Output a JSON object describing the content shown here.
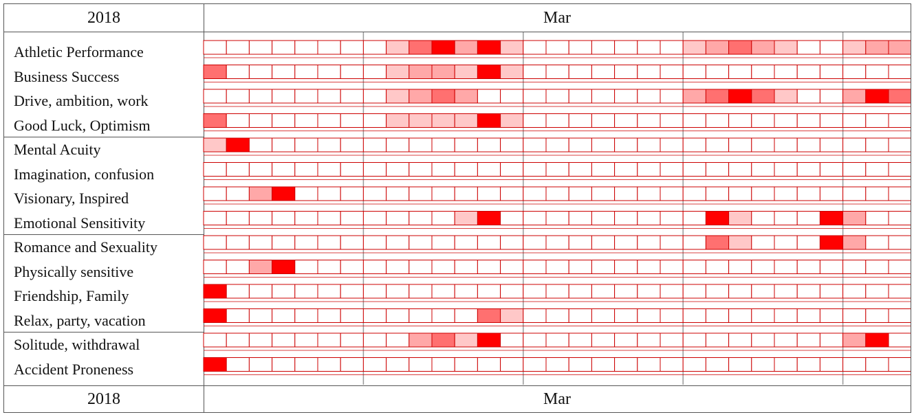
{
  "header": {
    "year": "2018",
    "month": "Mar"
  },
  "footer": {
    "year": "2018",
    "month": "Mar"
  },
  "colors": {
    "grid": "#cc0000",
    "week_separator": "#999999",
    "intensity": [
      "#ffffff",
      "#ffc8c8",
      "#ffa8a8",
      "#ff7070",
      "#ff0000"
    ]
  },
  "chart_data": {
    "type": "heatmap",
    "title": "",
    "days_visible": 31,
    "value_scale": "0 = none, 4 = strongest",
    "groups": [
      [
        "Athletic Performance",
        "Business Success",
        "Drive, ambition, work",
        "Good Luck, Optimism"
      ],
      [
        "Mental Acuity",
        "Imagination, confusion",
        "Visionary, Inspired",
        "Emotional Sensitivity"
      ],
      [
        "Romance and Sexuality",
        "Physically sensitive",
        "Friendship, Family",
        "Relax, party, vacation"
      ],
      [
        "Solitude, withdrawal",
        "Accident Proneness"
      ]
    ],
    "rows": [
      {
        "label": "Athletic Performance",
        "values": [
          0,
          0,
          0,
          0,
          0,
          0,
          0,
          0,
          1,
          3,
          4,
          2,
          4,
          1,
          0,
          0,
          0,
          0,
          0,
          0,
          0,
          1,
          2,
          3,
          2,
          1,
          0,
          0,
          1,
          2,
          2
        ]
      },
      {
        "label": "Business Success",
        "values": [
          3,
          0,
          0,
          0,
          0,
          0,
          0,
          0,
          1,
          2,
          2,
          1,
          4,
          1,
          0,
          0,
          0,
          0,
          0,
          0,
          0,
          0,
          0,
          0,
          0,
          0,
          0,
          0,
          0,
          0,
          0
        ]
      },
      {
        "label": "Drive, ambition, work",
        "values": [
          0,
          0,
          0,
          0,
          0,
          0,
          0,
          0,
          1,
          2,
          3,
          2,
          0,
          0,
          0,
          0,
          0,
          0,
          0,
          0,
          0,
          2,
          3,
          4,
          3,
          1,
          0,
          0,
          2,
          4,
          3
        ]
      },
      {
        "label": "Good Luck, Optimism",
        "values": [
          3,
          0,
          0,
          0,
          0,
          0,
          0,
          0,
          1,
          1,
          1,
          1,
          4,
          1,
          0,
          0,
          0,
          0,
          0,
          0,
          0,
          0,
          0,
          0,
          0,
          0,
          0,
          0,
          0,
          0,
          0
        ]
      },
      {
        "label": "Mental Acuity",
        "values": [
          1,
          4,
          0,
          0,
          0,
          0,
          0,
          0,
          0,
          0,
          0,
          0,
          0,
          0,
          0,
          0,
          0,
          0,
          0,
          0,
          0,
          0,
          0,
          0,
          0,
          0,
          0,
          0,
          0,
          0,
          0
        ]
      },
      {
        "label": "Imagination, confusion",
        "values": [
          0,
          0,
          0,
          0,
          0,
          0,
          0,
          0,
          0,
          0,
          0,
          0,
          0,
          0,
          0,
          0,
          0,
          0,
          0,
          0,
          0,
          0,
          0,
          0,
          0,
          0,
          0,
          0,
          0,
          0,
          0
        ]
      },
      {
        "label": "Visionary, Inspired",
        "values": [
          0,
          0,
          2,
          4,
          0,
          0,
          0,
          0,
          0,
          0,
          0,
          0,
          0,
          0,
          0,
          0,
          0,
          0,
          0,
          0,
          0,
          0,
          0,
          0,
          0,
          0,
          0,
          0,
          0,
          0,
          0
        ]
      },
      {
        "label": "Emotional Sensitivity",
        "values": [
          0,
          0,
          0,
          0,
          0,
          0,
          0,
          0,
          0,
          0,
          0,
          1,
          4,
          0,
          0,
          0,
          0,
          0,
          0,
          0,
          0,
          0,
          4,
          1,
          0,
          0,
          0,
          4,
          2,
          0,
          0
        ]
      },
      {
        "label": "Romance and Sexuality",
        "values": [
          0,
          0,
          0,
          0,
          0,
          0,
          0,
          0,
          0,
          0,
          0,
          0,
          0,
          0,
          0,
          0,
          0,
          0,
          0,
          0,
          0,
          0,
          3,
          1,
          0,
          0,
          0,
          4,
          2,
          0,
          0
        ]
      },
      {
        "label": "Physically sensitive",
        "values": [
          0,
          0,
          2,
          4,
          0,
          0,
          0,
          0,
          0,
          0,
          0,
          0,
          0,
          0,
          0,
          0,
          0,
          0,
          0,
          0,
          0,
          0,
          0,
          0,
          0,
          0,
          0,
          0,
          0,
          0,
          0
        ]
      },
      {
        "label": "Friendship, Family",
        "values": [
          4,
          0,
          0,
          0,
          0,
          0,
          0,
          0,
          0,
          0,
          0,
          0,
          0,
          0,
          0,
          0,
          0,
          0,
          0,
          0,
          0,
          0,
          0,
          0,
          0,
          0,
          0,
          0,
          0,
          0,
          0
        ]
      },
      {
        "label": "Relax, party, vacation",
        "values": [
          4,
          0,
          0,
          0,
          0,
          0,
          0,
          0,
          0,
          0,
          0,
          0,
          3,
          1,
          0,
          0,
          0,
          0,
          0,
          0,
          0,
          0,
          0,
          0,
          0,
          0,
          0,
          0,
          0,
          0,
          0
        ]
      },
      {
        "label": "Solitude, withdrawal",
        "values": [
          0,
          0,
          0,
          0,
          0,
          0,
          0,
          0,
          0,
          2,
          3,
          1,
          4,
          0,
          0,
          0,
          0,
          0,
          0,
          0,
          0,
          0,
          0,
          0,
          0,
          0,
          0,
          0,
          2,
          4,
          0
        ]
      },
      {
        "label": "Accident Proneness",
        "values": [
          4,
          0,
          0,
          0,
          0,
          0,
          0,
          0,
          0,
          0,
          0,
          0,
          0,
          0,
          0,
          0,
          0,
          0,
          0,
          0,
          0,
          0,
          0,
          0,
          0,
          0,
          0,
          0,
          0,
          0,
          0
        ]
      }
    ]
  }
}
